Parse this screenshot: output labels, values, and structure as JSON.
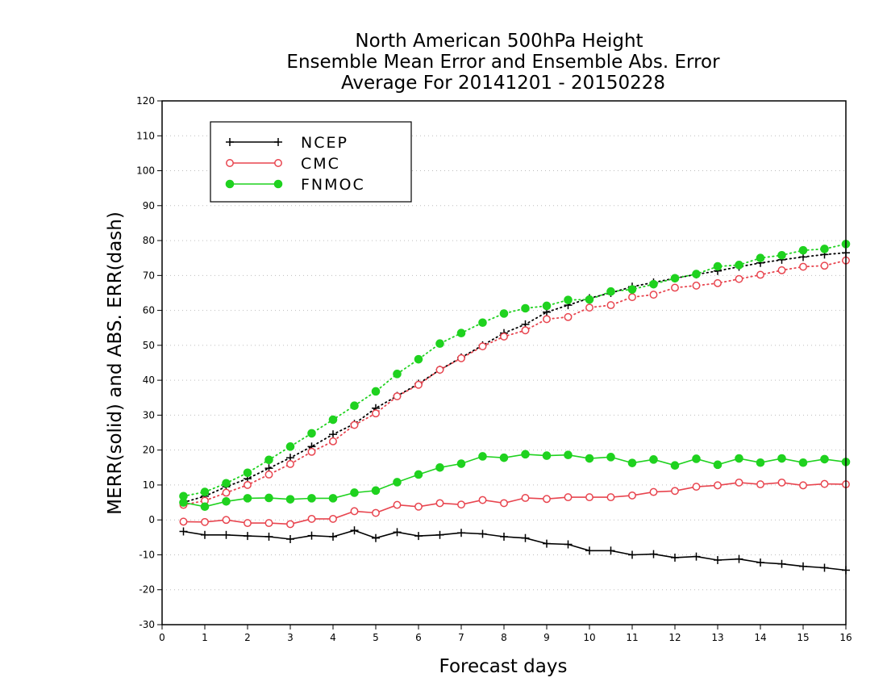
{
  "chart_data": {
    "type": "line",
    "title": [
      "North American 500hPa Height",
      "Ensemble Mean Error and Ensemble Abs. Error",
      "Average For 20141201 - 20150228"
    ],
    "xlabel": "Forecast days",
    "ylabel": "MERR(solid) and ABS. ERR(dash)",
    "xlim": [
      0,
      16
    ],
    "ylim": [
      -30,
      120
    ],
    "xticks": [
      "0",
      "1",
      "2",
      "3",
      "4",
      "5",
      "6",
      "7",
      "8",
      "9",
      "10",
      "11",
      "12",
      "13",
      "14",
      "15",
      "16"
    ],
    "yticks": [
      "-30",
      "-20",
      "-10",
      "0",
      "10",
      "20",
      "30",
      "40",
      "50",
      "60",
      "70",
      "80",
      "90",
      "100",
      "110",
      "120"
    ],
    "grid": true,
    "legend_position": "top-left",
    "x": [
      0.5,
      1,
      1.5,
      2,
      2.5,
      3,
      3.5,
      4,
      4.5,
      5,
      5.5,
      6,
      6.5,
      7,
      7.5,
      8,
      8.5,
      9,
      9.5,
      10,
      10.5,
      11,
      11.5,
      12,
      12.5,
      13,
      13.5,
      14,
      14.5,
      15,
      15.5,
      16
    ],
    "series": [
      {
        "name": "NCEP",
        "color": "#000000",
        "marker": "plus",
        "merr": [
          -3.3,
          -4.3,
          -4.3,
          -4.6,
          -4.8,
          -5.5,
          -4.5,
          -4.8,
          -3.0,
          -5.2,
          -3.5,
          -4.6,
          -4.3,
          -3.7,
          -4.0,
          -4.8,
          -5.2,
          -6.8,
          -7.0,
          -8.8,
          -8.8,
          -10.0,
          -9.8,
          -10.8,
          -10.5,
          -11.5,
          -11.2,
          -12.2,
          -12.6,
          -13.3,
          -13.7,
          -14.4
        ],
        "abs_err": [
          5.0,
          6.8,
          9.5,
          11.8,
          14.8,
          17.8,
          21.0,
          24.5,
          27.5,
          32.0,
          35.5,
          39.0,
          43.0,
          46.5,
          50.0,
          53.5,
          56.0,
          59.5,
          61.5,
          63.5,
          65.0,
          66.8,
          68.0,
          69.2,
          70.3,
          71.3,
          72.5,
          73.6,
          74.5,
          75.3,
          76.0,
          76.5
        ]
      },
      {
        "name": "CMC",
        "color": "#e8454f",
        "marker": "open-circle",
        "merr": [
          -0.5,
          -0.6,
          0.0,
          -0.9,
          -0.9,
          -1.2,
          0.3,
          0.3,
          2.5,
          2.0,
          4.3,
          3.8,
          4.8,
          4.4,
          5.7,
          4.8,
          6.3,
          6.0,
          6.5,
          6.5,
          6.5,
          7.0,
          8.0,
          8.3,
          9.5,
          9.9,
          10.7,
          10.2,
          10.7,
          9.9,
          10.3,
          10.2
        ],
        "abs_err": [
          4.3,
          5.5,
          7.8,
          10.0,
          13.0,
          16.0,
          19.5,
          22.5,
          27.2,
          30.5,
          35.4,
          38.7,
          43.0,
          46.3,
          49.7,
          52.5,
          54.3,
          57.5,
          58.1,
          60.8,
          61.5,
          63.8,
          64.5,
          66.5,
          67.1,
          67.8,
          69.0,
          70.2,
          71.5,
          72.5,
          72.8,
          74.3
        ]
      },
      {
        "name": "FNMOC",
        "color": "#1fd21f",
        "marker": "filled-circle",
        "merr": [
          5.0,
          3.8,
          5.3,
          6.2,
          6.3,
          5.9,
          6.2,
          6.2,
          7.8,
          8.4,
          10.8,
          13.0,
          15.0,
          16.1,
          18.2,
          17.8,
          18.8,
          18.4,
          18.6,
          17.6,
          18.0,
          16.3,
          17.3,
          15.6,
          17.5,
          15.8,
          17.6,
          16.4,
          17.6,
          16.4,
          17.4,
          16.6
        ],
        "abs_err": [
          6.8,
          8.0,
          10.5,
          13.5,
          17.2,
          21.0,
          24.8,
          28.7,
          32.7,
          36.8,
          41.8,
          46.0,
          50.5,
          53.5,
          56.5,
          59.1,
          60.6,
          61.3,
          63.0,
          63.1,
          65.4,
          66.0,
          67.5,
          69.2,
          70.4,
          72.6,
          73.0,
          75.0,
          75.8,
          77.2,
          77.6,
          79.0
        ]
      }
    ]
  }
}
